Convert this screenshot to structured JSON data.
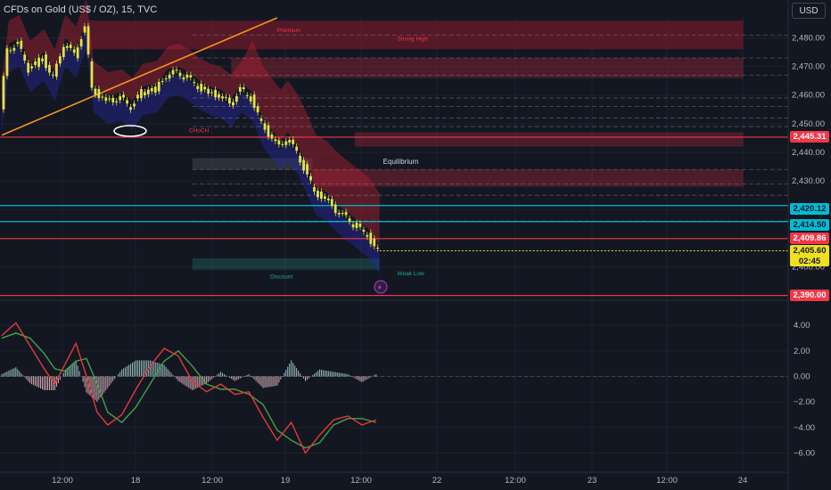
{
  "header": {
    "title": "CFDs on Gold (US$ / OZ), 15, TVC",
    "unit_button": "USD"
  },
  "colors": {
    "background": "#131722",
    "bull": "#26a69a",
    "bear": "#ef5350",
    "candle": "#e5e24a",
    "trendline": "#f7931a",
    "premium_zone": "#8b1a2b",
    "discount_zone": "#1f4d4a",
    "macd_line": "#e53935",
    "signal_line": "#43a047"
  },
  "chart_data": [
    {
      "type": "candlestick",
      "title": "CFDs on Gold (US$ / OZ), 15, TVC",
      "price_axis": {
        "ylim": [
          2393,
          2487
        ],
        "ticks": [
          2400,
          2410,
          2420,
          2430,
          2440,
          2450,
          2460,
          2470,
          2480
        ],
        "tick_labels": [
          "2,400.00",
          "2,410.00",
          "2,420.00",
          "2,430.00",
          "2,440.00",
          "2,450.00",
          "2,460.00",
          "2,470.00",
          "2,480.00"
        ]
      },
      "time_axis": {
        "labels": [
          "12:00",
          "18",
          "12:00",
          "19",
          "12:00",
          "22",
          "12:00",
          "23",
          "12:00",
          "24"
        ]
      },
      "close_path": [
        {
          "t": 0,
          "p": 2455
        },
        {
          "t": 2,
          "p": 2476
        },
        {
          "t": 5,
          "p": 2478
        },
        {
          "t": 8,
          "p": 2469
        },
        {
          "t": 12,
          "p": 2473
        },
        {
          "t": 15,
          "p": 2466
        },
        {
          "t": 18,
          "p": 2478
        },
        {
          "t": 21,
          "p": 2474
        },
        {
          "t": 24,
          "p": 2484
        },
        {
          "t": 26,
          "p": 2462
        },
        {
          "t": 30,
          "p": 2458
        },
        {
          "t": 34,
          "p": 2459
        },
        {
          "t": 37,
          "p": 2456
        },
        {
          "t": 40,
          "p": 2461
        },
        {
          "t": 44,
          "p": 2462
        },
        {
          "t": 47,
          "p": 2467
        },
        {
          "t": 50,
          "p": 2468
        },
        {
          "t": 53,
          "p": 2466
        },
        {
          "t": 56,
          "p": 2463
        },
        {
          "t": 59,
          "p": 2461
        },
        {
          "t": 62,
          "p": 2460
        },
        {
          "t": 65,
          "p": 2457
        },
        {
          "t": 68,
          "p": 2462
        },
        {
          "t": 71,
          "p": 2459
        },
        {
          "t": 74,
          "p": 2450
        },
        {
          "t": 77,
          "p": 2445
        },
        {
          "t": 79,
          "p": 2442
        },
        {
          "t": 81,
          "p": 2445
        },
        {
          "t": 84,
          "p": 2440
        },
        {
          "t": 87,
          "p": 2432
        },
        {
          "t": 89,
          "p": 2426
        },
        {
          "t": 92,
          "p": 2424
        },
        {
          "t": 95,
          "p": 2420
        },
        {
          "t": 98,
          "p": 2417
        },
        {
          "t": 101,
          "p": 2414
        },
        {
          "t": 104,
          "p": 2411
        },
        {
          "t": 107,
          "p": 2405.6
        }
      ],
      "price_labels": [
        {
          "value": 2445.31,
          "text": "2,445.31",
          "kind": "resistance"
        },
        {
          "value": 2420.12,
          "text": "2,420.12",
          "kind": "level"
        },
        {
          "value": 2414.5,
          "text": "2,414.50",
          "kind": "level"
        },
        {
          "value": 2409.86,
          "text": "2,409.86",
          "kind": "resistance"
        },
        {
          "value": 2405.6,
          "text": "2,405.60",
          "kind": "last",
          "countdown": "02:45"
        },
        {
          "value": 2390.0,
          "text": "2,390.00",
          "kind": "resistance"
        }
      ],
      "horizontal_lines": [
        {
          "value": 2445.31,
          "color": "#f23645"
        },
        {
          "value": 2421.4,
          "color": "#00bcd4"
        },
        {
          "value": 2415.8,
          "color": "#00bcd4"
        },
        {
          "value": 2409.86,
          "color": "#f23645"
        },
        {
          "value": 2390.0,
          "color": "#f23645"
        }
      ],
      "dashed_lines": [
        2481,
        2473,
        2467,
        2459,
        2456,
        2452,
        2449,
        2434,
        2429,
        2425,
        2416
      ],
      "zones": [
        {
          "from": 2476,
          "to": 2486,
          "t0": 24,
          "t1": 210,
          "kind": "premium"
        },
        {
          "from": 2466,
          "to": 2473,
          "t0": 65,
          "t1": 210,
          "kind": "supply"
        },
        {
          "from": 2442,
          "to": 2447,
          "t0": 100,
          "t1": 210,
          "kind": "supply"
        },
        {
          "from": 2428,
          "to": 2434,
          "t0": 88,
          "t1": 210,
          "kind": "supply"
        },
        {
          "from": 2434,
          "to": 2438,
          "t0": 54,
          "t1": 88,
          "kind": "equilibrium"
        },
        {
          "from": 2399,
          "to": 2403,
          "t0": 54,
          "t1": 107,
          "kind": "discount"
        }
      ],
      "annotations": [
        {
          "text": "CHoCH",
          "value": 2447,
          "t": 53,
          "color": "#f23645"
        },
        {
          "text": "Equilibrium",
          "value": 2436,
          "t": 108,
          "color": "#d1d4dc"
        },
        {
          "text": "Discount",
          "value": 2396,
          "t": 76,
          "color": "#26a69a"
        },
        {
          "text": "Premium",
          "value": 2482,
          "t": 78,
          "color": "#f23645"
        },
        {
          "text": "Strong High",
          "value": 2479,
          "t": 112,
          "color": "#f23645"
        },
        {
          "text": "Weak Low",
          "value": 2397,
          "t": 112,
          "color": "#26a69a"
        }
      ],
      "trendline": [
        {
          "t": 0,
          "p": 2446
        },
        {
          "t": 78,
          "p": 2487
        }
      ]
    },
    {
      "type": "macd",
      "ylim": [
        -6.8,
        5.2
      ],
      "ticks": [
        4,
        2,
        0,
        -2,
        -4,
        -6
      ],
      "tick_labels": [
        "4.00",
        "2.00",
        "0.00",
        "−2.00",
        "−4.00",
        "−6.00"
      ],
      "macd": [
        {
          "t": 0,
          "v": 3.2
        },
        {
          "t": 4,
          "v": 4.2
        },
        {
          "t": 8,
          "v": 2.4
        },
        {
          "t": 12,
          "v": 0.6
        },
        {
          "t": 15,
          "v": -0.6
        },
        {
          "t": 18,
          "v": 1.0
        },
        {
          "t": 21,
          "v": 2.6
        },
        {
          "t": 24,
          "v": 0.0
        },
        {
          "t": 27,
          "v": -2.8
        },
        {
          "t": 30,
          "v": -3.8
        },
        {
          "t": 34,
          "v": -3.0
        },
        {
          "t": 38,
          "v": -1.0
        },
        {
          "t": 42,
          "v": 0.8
        },
        {
          "t": 46,
          "v": 2.2
        },
        {
          "t": 50,
          "v": 1.6
        },
        {
          "t": 54,
          "v": -0.4
        },
        {
          "t": 58,
          "v": -1.2
        },
        {
          "t": 62,
          "v": -0.6
        },
        {
          "t": 66,
          "v": -1.4
        },
        {
          "t": 70,
          "v": -1.2
        },
        {
          "t": 74,
          "v": -3.2
        },
        {
          "t": 78,
          "v": -5.0
        },
        {
          "t": 82,
          "v": -3.6
        },
        {
          "t": 86,
          "v": -6.0
        },
        {
          "t": 90,
          "v": -4.6
        },
        {
          "t": 94,
          "v": -3.4
        },
        {
          "t": 98,
          "v": -3.1
        },
        {
          "t": 102,
          "v": -3.8
        },
        {
          "t": 106,
          "v": -3.4
        }
      ],
      "signal": [
        {
          "t": 0,
          "v": 3.0
        },
        {
          "t": 4,
          "v": 3.4
        },
        {
          "t": 8,
          "v": 3.0
        },
        {
          "t": 12,
          "v": 1.8
        },
        {
          "t": 15,
          "v": 0.6
        },
        {
          "t": 18,
          "v": 0.4
        },
        {
          "t": 21,
          "v": 1.2
        },
        {
          "t": 24,
          "v": 1.4
        },
        {
          "t": 27,
          "v": -0.6
        },
        {
          "t": 30,
          "v": -2.8
        },
        {
          "t": 34,
          "v": -3.6
        },
        {
          "t": 38,
          "v": -2.4
        },
        {
          "t": 42,
          "v": -0.6
        },
        {
          "t": 46,
          "v": 1.2
        },
        {
          "t": 50,
          "v": 2.0
        },
        {
          "t": 54,
          "v": 0.8
        },
        {
          "t": 58,
          "v": -0.6
        },
        {
          "t": 62,
          "v": -1.0
        },
        {
          "t": 66,
          "v": -1.0
        },
        {
          "t": 70,
          "v": -1.4
        },
        {
          "t": 74,
          "v": -2.2
        },
        {
          "t": 78,
          "v": -4.2
        },
        {
          "t": 82,
          "v": -5.0
        },
        {
          "t": 86,
          "v": -5.6
        },
        {
          "t": 90,
          "v": -5.2
        },
        {
          "t": 94,
          "v": -3.8
        },
        {
          "t": 98,
          "v": -3.3
        },
        {
          "t": 102,
          "v": -3.3
        },
        {
          "t": 106,
          "v": -3.6
        }
      ]
    }
  ]
}
